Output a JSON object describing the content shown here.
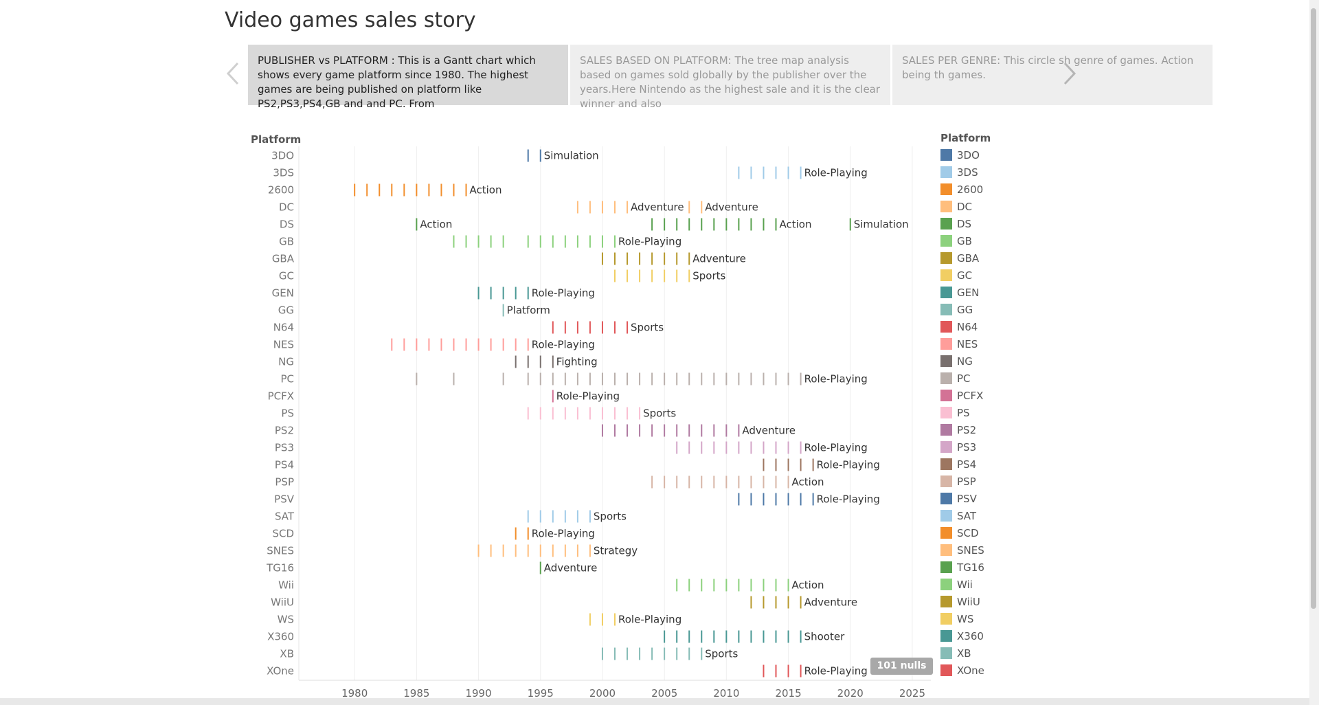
{
  "story": {
    "title": "Video games sales story",
    "points": [
      {
        "text": "PUBLISHER vs PLATFORM : This is a Gantt chart which shows every game platform since 1980. The highest games are being published on platform like PS2,PS3,PS4,GB and  and PC. From",
        "active": true
      },
      {
        "text": "SALES BASED ON PLATFORM: The tree map analysis based on games sold globally by the publisher over the years.Here Nintendo as the highest sale and it is the clear winner and also",
        "active": false
      },
      {
        "text": "SALES PER GENRE: This circle sh genre of games. Action being th games.",
        "active": false
      }
    ]
  },
  "nulls_badge": "101 nulls",
  "chart_data": {
    "type": "gantt",
    "row_header": "Platform",
    "legend_title": "Platform",
    "legend_placement": "right",
    "x_ticks": [
      1980,
      1985,
      1990,
      1995,
      2000,
      2005,
      2010,
      2015,
      2020,
      2025
    ],
    "xlim": [
      1975.5,
      2026.5
    ],
    "grid": true,
    "rows": [
      {
        "platform": "3DO",
        "color": "#4e79a7",
        "years": [
          1994,
          1995
        ],
        "label": "Simulation"
      },
      {
        "platform": "3DS",
        "color": "#a0cbe8",
        "years": [
          2011,
          2012,
          2013,
          2014,
          2015,
          2016
        ],
        "label": "Role-Playing"
      },
      {
        "platform": "2600",
        "color": "#f28e2b",
        "years": [
          1980,
          1981,
          1982,
          1983,
          1984,
          1985,
          1986,
          1987,
          1988,
          1989
        ],
        "label": "Action"
      },
      {
        "platform": "DC",
        "color": "#ffbe7d",
        "years": [
          1998,
          1999,
          2000,
          2001,
          2002
        ],
        "label": "Adventure",
        "extra": {
          "years": [
            2007,
            2008
          ],
          "label": "Adventure"
        }
      },
      {
        "platform": "DS",
        "color": "#59a14f",
        "years": [
          1985
        ],
        "label": "Action",
        "extra": {
          "years": [
            2004,
            2005,
            2006,
            2007,
            2008,
            2009,
            2010,
            2011,
            2012,
            2013,
            2014
          ],
          "label": "Action"
        },
        "extra2": {
          "years": [
            2020
          ],
          "label": "Simulation"
        }
      },
      {
        "platform": "GB",
        "color": "#8cd17d",
        "years": [
          1988,
          1989,
          1990,
          1991,
          1992,
          1994,
          1995,
          1996,
          1997,
          1998,
          1999,
          2000,
          2001
        ],
        "label": "Role-Playing"
      },
      {
        "platform": "GBA",
        "color": "#b6992d",
        "years": [
          2000,
          2001,
          2002,
          2003,
          2004,
          2005,
          2006,
          2007
        ],
        "label": "Adventure"
      },
      {
        "platform": "GC",
        "color": "#f1ce63",
        "years": [
          2001,
          2002,
          2003,
          2004,
          2005,
          2006,
          2007
        ],
        "label": "Sports"
      },
      {
        "platform": "GEN",
        "color": "#499894",
        "years": [
          1990,
          1991,
          1992,
          1993,
          1994
        ],
        "label": "Role-Playing"
      },
      {
        "platform": "GG",
        "color": "#86bcb6",
        "years": [
          1992
        ],
        "label": "Platform"
      },
      {
        "platform": "N64",
        "color": "#e15759",
        "years": [
          1996,
          1997,
          1998,
          1999,
          2000,
          2001,
          2002
        ],
        "label": "Sports"
      },
      {
        "platform": "NES",
        "color": "#ff9d9a",
        "years": [
          1983,
          1984,
          1985,
          1986,
          1987,
          1988,
          1989,
          1990,
          1991,
          1992,
          1993,
          1994
        ],
        "label": "Role-Playing"
      },
      {
        "platform": "NG",
        "color": "#79706e",
        "years": [
          1993,
          1994,
          1995,
          1996
        ],
        "label": "Fighting"
      },
      {
        "platform": "PC",
        "color": "#bab0ac",
        "years": [
          1985,
          1988,
          1992,
          1994,
          1995,
          1996,
          1997,
          1998,
          1999,
          2000,
          2001,
          2002,
          2003,
          2004,
          2005,
          2006,
          2007,
          2008,
          2009,
          2010,
          2011,
          2012,
          2013,
          2014,
          2015,
          2016
        ],
        "label": "Role-Playing"
      },
      {
        "platform": "PCFX",
        "color": "#d37295",
        "years": [
          1996
        ],
        "label": "Role-Playing"
      },
      {
        "platform": "PS",
        "color": "#fabfd2",
        "years": [
          1994,
          1995,
          1996,
          1997,
          1998,
          1999,
          2000,
          2001,
          2002,
          2003
        ],
        "label": "Sports"
      },
      {
        "platform": "PS2",
        "color": "#b07aa1",
        "years": [
          2000,
          2001,
          2002,
          2003,
          2004,
          2005,
          2006,
          2007,
          2008,
          2009,
          2010,
          2011
        ],
        "label": "Adventure"
      },
      {
        "platform": "PS3",
        "color": "#d4a6c8",
        "years": [
          2006,
          2007,
          2008,
          2009,
          2010,
          2011,
          2012,
          2013,
          2014,
          2015,
          2016
        ],
        "label": "Role-Playing"
      },
      {
        "platform": "PS4",
        "color": "#9d7660",
        "years": [
          2013,
          2014,
          2015,
          2016,
          2017
        ],
        "label": "Role-Playing"
      },
      {
        "platform": "PSP",
        "color": "#d7b5a6",
        "years": [
          2004,
          2005,
          2006,
          2007,
          2008,
          2009,
          2010,
          2011,
          2012,
          2013,
          2014,
          2015
        ],
        "label": "Action"
      },
      {
        "platform": "PSV",
        "color": "#4e79a7",
        "years": [
          2011,
          2012,
          2013,
          2014,
          2015,
          2016,
          2017
        ],
        "label": "Role-Playing"
      },
      {
        "platform": "SAT",
        "color": "#a0cbe8",
        "years": [
          1994,
          1995,
          1996,
          1997,
          1998,
          1999
        ],
        "label": "Sports"
      },
      {
        "platform": "SCD",
        "color": "#f28e2b",
        "years": [
          1993,
          1994
        ],
        "label": "Role-Playing"
      },
      {
        "platform": "SNES",
        "color": "#ffbe7d",
        "years": [
          1990,
          1991,
          1992,
          1993,
          1994,
          1995,
          1996,
          1997,
          1998,
          1999
        ],
        "label": "Strategy"
      },
      {
        "platform": "TG16",
        "color": "#59a14f",
        "years": [
          1995
        ],
        "label": "Adventure"
      },
      {
        "platform": "Wii",
        "color": "#8cd17d",
        "years": [
          2006,
          2007,
          2008,
          2009,
          2010,
          2011,
          2012,
          2013,
          2014,
          2015
        ],
        "label": "Action"
      },
      {
        "platform": "WiiU",
        "color": "#b6992d",
        "years": [
          2012,
          2013,
          2014,
          2015,
          2016
        ],
        "label": "Adventure"
      },
      {
        "platform": "WS",
        "color": "#f1ce63",
        "years": [
          1999,
          2000,
          2001
        ],
        "label": "Role-Playing"
      },
      {
        "platform": "X360",
        "color": "#499894",
        "years": [
          2005,
          2006,
          2007,
          2008,
          2009,
          2010,
          2011,
          2012,
          2013,
          2014,
          2015,
          2016
        ],
        "label": "Shooter"
      },
      {
        "platform": "XB",
        "color": "#86bcb6",
        "years": [
          2000,
          2001,
          2002,
          2003,
          2004,
          2005,
          2006,
          2007,
          2008
        ],
        "label": "Sports"
      },
      {
        "platform": "XOne",
        "color": "#e15759",
        "years": [
          2013,
          2014,
          2015,
          2016
        ],
        "label": "Role-Playing"
      }
    ]
  }
}
